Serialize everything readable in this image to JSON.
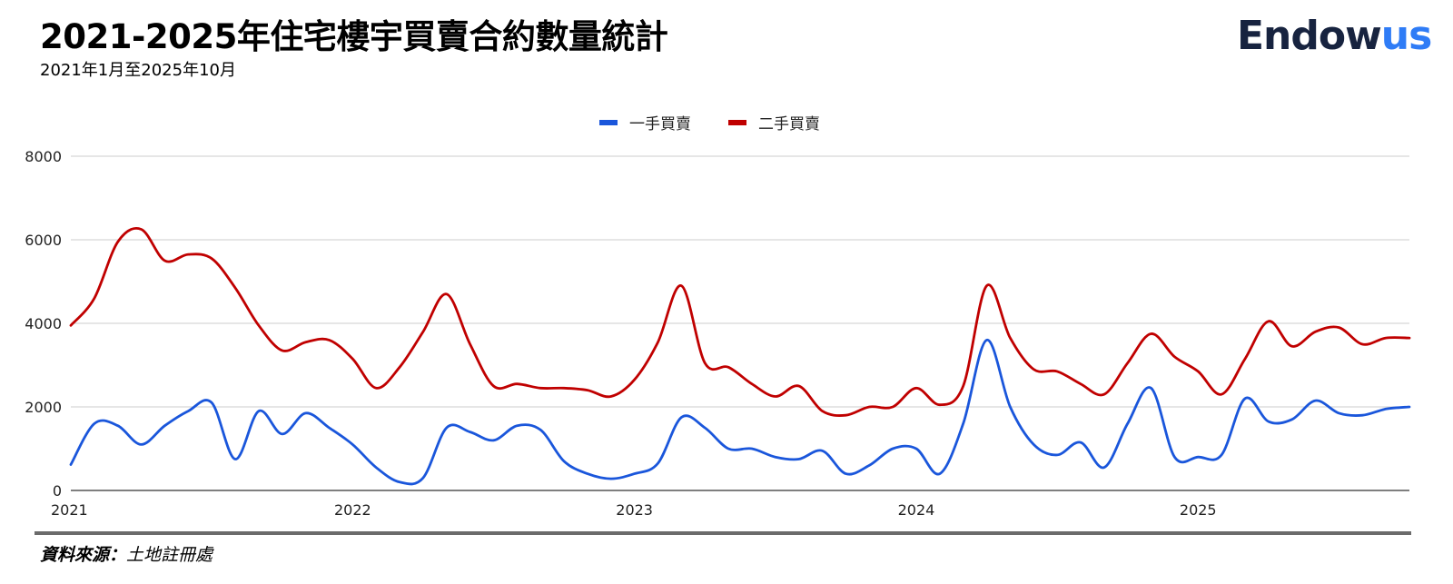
{
  "header": {
    "title": "2021-2025年住宅樓宇買賣合約數量統計",
    "subtitle": "2021年1月至2025年10月",
    "logo_main": "Endow",
    "logo_accent": "us"
  },
  "footer": {
    "source_label": "資料來源：",
    "source_value": "土地註冊處"
  },
  "colors": {
    "primary": "#1a56db",
    "secondary": "#c00000",
    "grid": "#cccccc",
    "brand_dark": "#17233f",
    "brand_blue": "#2f7cf6"
  },
  "chart_data": {
    "type": "line",
    "legend_position": "top-center",
    "grid": true,
    "ylim": [
      0,
      8000
    ],
    "xlim": [
      2021,
      2025.75
    ],
    "yticks": [
      0,
      2000,
      4000,
      6000,
      8000
    ],
    "xticks": [
      2021,
      2022,
      2023,
      2024,
      2025
    ],
    "x": [
      "2021-01",
      "2021-02",
      "2021-03",
      "2021-04",
      "2021-05",
      "2021-06",
      "2021-07",
      "2021-08",
      "2021-09",
      "2021-10",
      "2021-11",
      "2021-12",
      "2022-01",
      "2022-02",
      "2022-03",
      "2022-04",
      "2022-05",
      "2022-06",
      "2022-07",
      "2022-08",
      "2022-09",
      "2022-10",
      "2022-11",
      "2022-12",
      "2023-01",
      "2023-02",
      "2023-03",
      "2023-04",
      "2023-05",
      "2023-06",
      "2023-07",
      "2023-08",
      "2023-09",
      "2023-10",
      "2023-11",
      "2023-12",
      "2024-01",
      "2024-02",
      "2024-03",
      "2024-04",
      "2024-05",
      "2024-06",
      "2024-07",
      "2024-08",
      "2024-09",
      "2024-10",
      "2024-11",
      "2024-12",
      "2025-01",
      "2025-02",
      "2025-03",
      "2025-04",
      "2025-05",
      "2025-06",
      "2025-07",
      "2025-08",
      "2025-09",
      "2025-10"
    ],
    "series": [
      {
        "name": "一手買賣",
        "color": "#1a56db",
        "values": [
          620,
          1600,
          1550,
          1100,
          1550,
          1900,
          2100,
          750,
          1900,
          1350,
          1850,
          1500,
          1100,
          550,
          200,
          300,
          1500,
          1400,
          1200,
          1550,
          1450,
          700,
          400,
          280,
          400,
          650,
          1750,
          1500,
          1000,
          1000,
          800,
          750,
          950,
          400,
          600,
          1000,
          1000,
          400,
          1600,
          3600,
          2000,
          1100,
          850,
          1150,
          550,
          1600,
          2450,
          800,
          800,
          850,
          2200,
          1650,
          1700,
          2150,
          1850,
          1800,
          1950,
          2000
        ]
      },
      {
        "name": "二手買賣",
        "color": "#c00000",
        "values": [
          3950,
          4600,
          5950,
          6250,
          5500,
          5650,
          5550,
          4850,
          3950,
          3350,
          3550,
          3600,
          3150,
          2450,
          2950,
          3800,
          4700,
          3500,
          2500,
          2550,
          2450,
          2450,
          2400,
          2250,
          2650,
          3550,
          4900,
          3050,
          2950,
          2550,
          2250,
          2500,
          1900,
          1800,
          2000,
          2000,
          2450,
          2050,
          2500,
          4900,
          3650,
          2900,
          2850,
          2550,
          2300,
          3050,
          3750,
          3200,
          2850,
          2300,
          3150,
          4050,
          3450,
          3800,
          3900,
          3500,
          3650,
          3650
        ]
      }
    ]
  }
}
